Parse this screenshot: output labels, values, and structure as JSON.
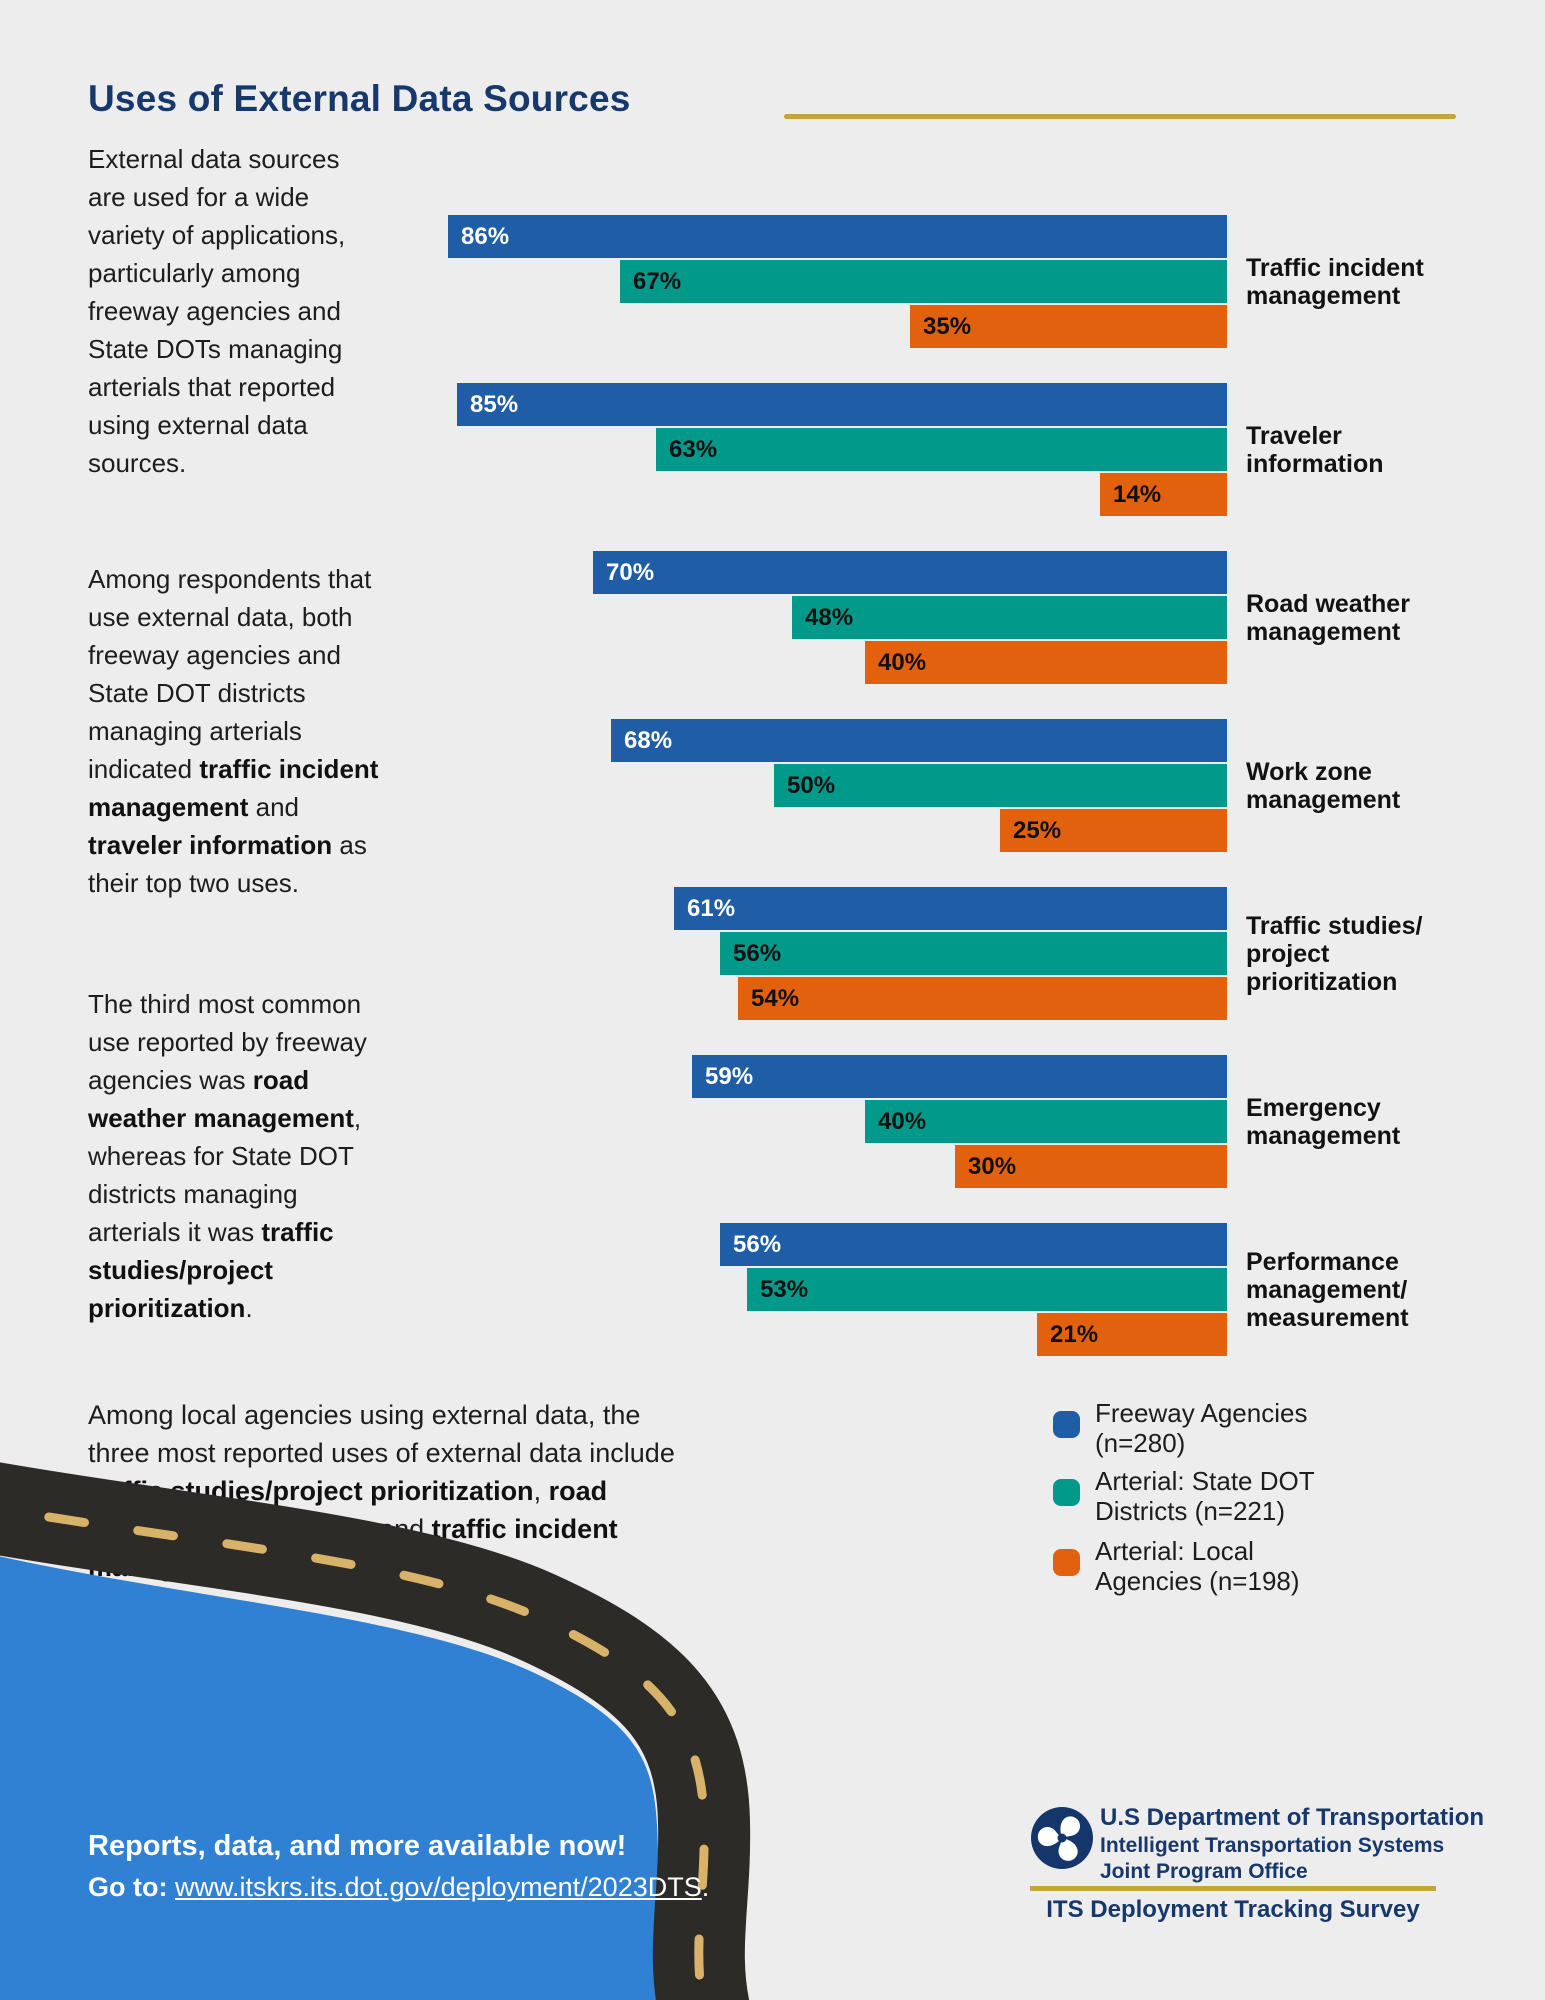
{
  "page": {
    "title": "Uses of External Data Sources",
    "background": "#eeeded",
    "accent_gold": "#c8a33c",
    "navy": "#17386b"
  },
  "intro": {
    "paragraphs": [
      [
        {
          "t": "External data sources are used for a wide variety of applications, particularly among freeway agencies and State DOTs managing arterials that reported using external data sources.",
          "b": false
        }
      ],
      [
        {
          "t": "Among respondents that use external data, both freeway agencies and State DOT districts managing arterials indicated ",
          "b": false
        },
        {
          "t": "traffic incident management",
          "b": true
        },
        {
          "t": " and ",
          "b": false
        },
        {
          "t": "traveler information",
          "b": true
        },
        {
          "t": " as their top two uses.",
          "b": false
        }
      ],
      [
        {
          "t": "The third most common use reported by freeway agencies was ",
          "b": false
        },
        {
          "t": "road weather management",
          "b": true
        },
        {
          "t": ", whereas for State DOT districts managing arterials it was ",
          "b": false
        },
        {
          "t": "traffic studies/project prioritization",
          "b": true
        },
        {
          "t": ".",
          "b": false
        }
      ]
    ]
  },
  "closing_paragraph": [
    {
      "t": "Among local agencies using external data, the three most reported uses of external data include ",
      "b": false
    },
    {
      "t": "traffic studies/project prioritization",
      "b": true
    },
    {
      "t": ", ",
      "b": false
    },
    {
      "t": "road weather management",
      "b": true
    },
    {
      "t": ", and ",
      "b": false
    },
    {
      "t": "traffic incident management",
      "b": true
    },
    {
      "t": ".",
      "b": false
    }
  ],
  "chart_data": {
    "type": "bar",
    "orientation": "horizontal",
    "alignment": "bars right-aligned to common edge, grow leftward",
    "value_suffix": "%",
    "xlim": [
      0,
      100
    ],
    "grid": false,
    "legend_position": "bottom-right",
    "categories": [
      "Traffic incident management",
      "Traveler information",
      "Road weather management",
      "Work zone management",
      "Traffic studies/ project prioritization",
      "Emergency management",
      "Performance management/ measurement"
    ],
    "category_lines": [
      [
        "Traffic incident",
        "management"
      ],
      [
        "Traveler",
        "information"
      ],
      [
        "Road weather",
        "management"
      ],
      [
        "Work zone",
        "management"
      ],
      [
        "Traffic studies/",
        "project",
        "prioritization"
      ],
      [
        "Emergency",
        "management"
      ],
      [
        "Performance",
        "management/",
        "measurement"
      ]
    ],
    "series": [
      {
        "name": "Freeway Agencies (n=280)",
        "color": "#1f5ea7",
        "label_color": "#ffffff",
        "values": [
          86,
          85,
          70,
          68,
          61,
          59,
          56
        ]
      },
      {
        "name": "Arterial: State DOT Districts (n=221)",
        "color": "#00998a",
        "label_color": "#101010",
        "values": [
          67,
          63,
          48,
          50,
          56,
          40,
          53
        ]
      },
      {
        "name": "Arterial: Local Agencies (n=198)",
        "color": "#e2610e",
        "label_color": "#101010",
        "values": [
          35,
          14,
          40,
          25,
          54,
          30,
          21
        ]
      }
    ],
    "legend": [
      {
        "lines": [
          "Freeway Agencies",
          "(n=280)"
        ],
        "color": "#1f5ea7"
      },
      {
        "lines": [
          "Arterial: State DOT",
          "Districts (n=221)"
        ],
        "color": "#00998a"
      },
      {
        "lines": [
          "Arterial: Local",
          "Agencies (n=198)"
        ],
        "color": "#e2610e"
      }
    ]
  },
  "footer": {
    "headline": "Reports, data, and more available now!",
    "goto_label": "Go to:",
    "link_text": "www.itskrs.its.dot.gov/deployment/2023DTS",
    "after_link": ".",
    "panel_color": "#3080d4",
    "road_color": "#2d2b28",
    "dash_color": "#d9b269"
  },
  "branding": {
    "dept": "U.S Department of Transportation",
    "program_line1": "Intelligent Transportation Systems",
    "program_line2": "Joint Program Office",
    "survey": "ITS Deployment Tracking Survey"
  }
}
